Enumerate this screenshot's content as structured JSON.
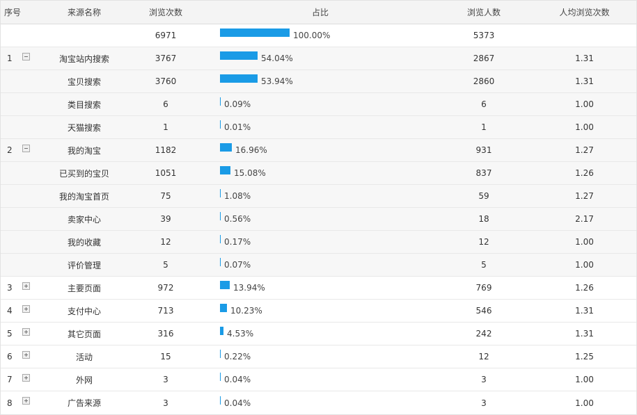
{
  "headers": {
    "index": "序号",
    "source": "来源名称",
    "views": "浏览次数",
    "ratio": "占比",
    "visitors": "浏览人数",
    "avg": "人均浏览次数"
  },
  "colors": {
    "bar": "#1a9be6"
  },
  "rows": [
    {
      "index": "",
      "toggle": "",
      "source": "",
      "views": "6971",
      "ratio": 1.0,
      "ratio_label": "100.00%",
      "visitors": "5373",
      "avg": "",
      "style": "total"
    },
    {
      "index": "1",
      "toggle": "minus",
      "source": "淘宝站内搜索",
      "views": "3767",
      "ratio": 0.5404,
      "ratio_label": "54.04%",
      "visitors": "2867",
      "avg": "1.31",
      "style": "alt"
    },
    {
      "index": "",
      "toggle": "",
      "source": "宝贝搜索",
      "views": "3760",
      "ratio": 0.5394,
      "ratio_label": "53.94%",
      "visitors": "2860",
      "avg": "1.31",
      "style": "alt"
    },
    {
      "index": "",
      "toggle": "",
      "source": "类目搜索",
      "views": "6",
      "ratio": 0.0009,
      "ratio_label": "0.09%",
      "visitors": "6",
      "avg": "1.00",
      "style": "alt"
    },
    {
      "index": "",
      "toggle": "",
      "source": "天猫搜索",
      "views": "1",
      "ratio": 0.0001,
      "ratio_label": "0.01%",
      "visitors": "1",
      "avg": "1.00",
      "style": "alt"
    },
    {
      "index": "2",
      "toggle": "minus",
      "source": "我的淘宝",
      "views": "1182",
      "ratio": 0.1696,
      "ratio_label": "16.96%",
      "visitors": "931",
      "avg": "1.27",
      "style": "alt"
    },
    {
      "index": "",
      "toggle": "",
      "source": "已买到的宝贝",
      "views": "1051",
      "ratio": 0.1508,
      "ratio_label": "15.08%",
      "visitors": "837",
      "avg": "1.26",
      "style": "alt"
    },
    {
      "index": "",
      "toggle": "",
      "source": "我的淘宝首页",
      "views": "75",
      "ratio": 0.0108,
      "ratio_label": "1.08%",
      "visitors": "59",
      "avg": "1.27",
      "style": "alt"
    },
    {
      "index": "",
      "toggle": "",
      "source": "卖家中心",
      "views": "39",
      "ratio": 0.0056,
      "ratio_label": "0.56%",
      "visitors": "18",
      "avg": "2.17",
      "style": "alt"
    },
    {
      "index": "",
      "toggle": "",
      "source": "我的收藏",
      "views": "12",
      "ratio": 0.0017,
      "ratio_label": "0.17%",
      "visitors": "12",
      "avg": "1.00",
      "style": "alt"
    },
    {
      "index": "",
      "toggle": "",
      "source": "评价管理",
      "views": "5",
      "ratio": 0.0007,
      "ratio_label": "0.07%",
      "visitors": "5",
      "avg": "1.00",
      "style": "alt"
    },
    {
      "index": "3",
      "toggle": "plus",
      "source": "主要页面",
      "views": "972",
      "ratio": 0.1394,
      "ratio_label": "13.94%",
      "visitors": "769",
      "avg": "1.26",
      "style": ""
    },
    {
      "index": "4",
      "toggle": "plus",
      "source": "支付中心",
      "views": "713",
      "ratio": 0.1023,
      "ratio_label": "10.23%",
      "visitors": "546",
      "avg": "1.31",
      "style": ""
    },
    {
      "index": "5",
      "toggle": "plus",
      "source": "其它页面",
      "views": "316",
      "ratio": 0.0453,
      "ratio_label": "4.53%",
      "visitors": "242",
      "avg": "1.31",
      "style": ""
    },
    {
      "index": "6",
      "toggle": "plus",
      "source": "活动",
      "views": "15",
      "ratio": 0.0022,
      "ratio_label": "0.22%",
      "visitors": "12",
      "avg": "1.25",
      "style": ""
    },
    {
      "index": "7",
      "toggle": "plus",
      "source": "外网",
      "views": "3",
      "ratio": 0.0004,
      "ratio_label": "0.04%",
      "visitors": "3",
      "avg": "1.00",
      "style": ""
    },
    {
      "index": "8",
      "toggle": "plus",
      "source": "广告来源",
      "views": "3",
      "ratio": 0.0004,
      "ratio_label": "0.04%",
      "visitors": "3",
      "avg": "1.00",
      "style": "last"
    }
  ]
}
